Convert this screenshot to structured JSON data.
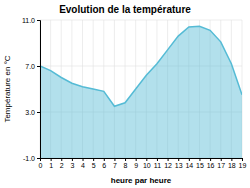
{
  "chart_data": {
    "type": "area",
    "title": "Evolution de la température",
    "x_label": "heure par heure",
    "y_label": "Température en °C",
    "x": [
      0,
      1,
      2,
      3,
      4,
      5,
      6,
      7,
      8,
      9,
      10,
      11,
      12,
      13,
      14,
      15,
      16,
      17,
      18,
      19
    ],
    "values": [
      7.0,
      6.6,
      6.0,
      5.5,
      5.2,
      5.0,
      4.8,
      3.5,
      3.8,
      5.0,
      6.2,
      7.2,
      8.4,
      9.6,
      10.4,
      10.45,
      10.1,
      9.1,
      7.2,
      4.5
    ],
    "color": "#55bbd5",
    "xlim": [
      0,
      19
    ],
    "ylim": [
      -1.0,
      11.0
    ],
    "xticks": [
      0,
      1,
      2,
      3,
      4,
      5,
      6,
      7,
      8,
      9,
      10,
      11,
      12,
      13,
      14,
      15,
      16,
      17,
      18,
      19
    ],
    "yticks": [
      {
        "value": -1.0,
        "label": "-1.0"
      },
      {
        "value": 3.0,
        "label": "3.0"
      },
      {
        "value": 7.0,
        "label": "7.0"
      },
      {
        "value": 11.0,
        "label": "11.0"
      }
    ],
    "grid": true
  }
}
